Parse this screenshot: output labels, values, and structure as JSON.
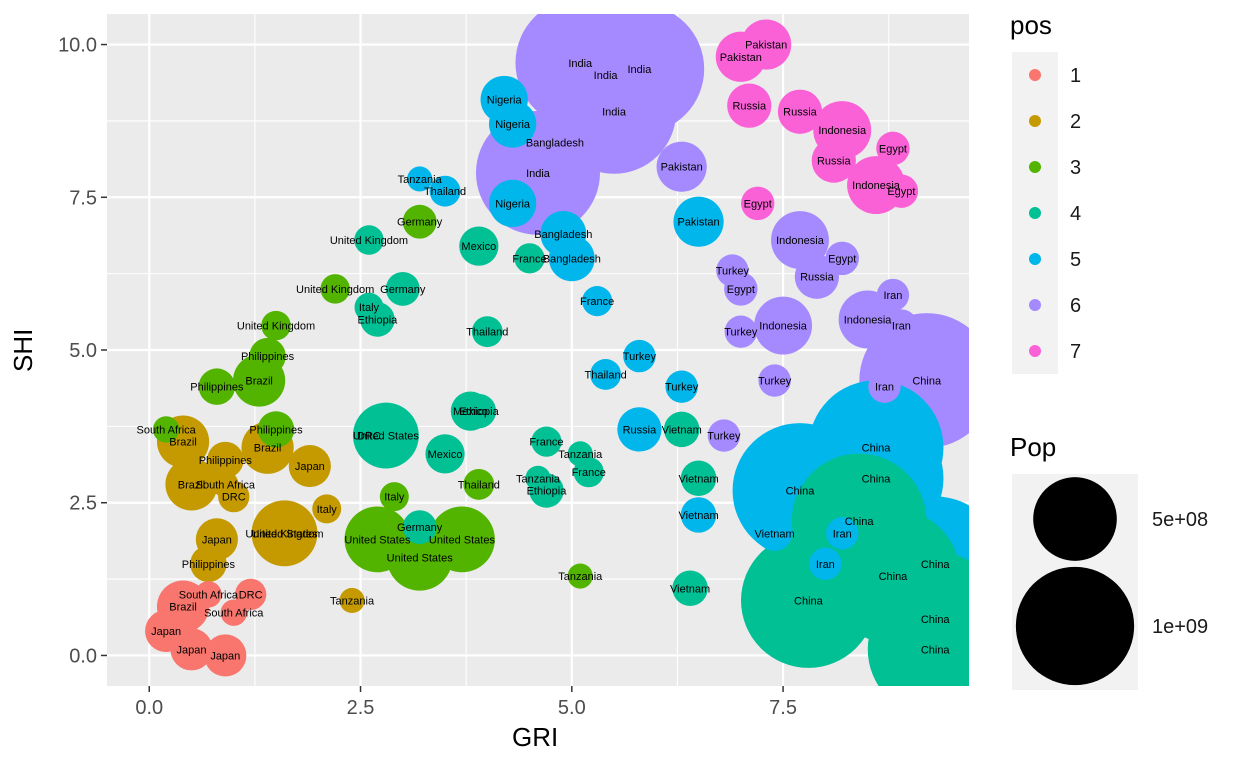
{
  "chart_data": {
    "type": "scatter",
    "xlabel": "GRI",
    "ylabel": "SHI",
    "xlim": [
      -0.5,
      9.7
    ],
    "ylim": [
      -0.5,
      10.5
    ],
    "x_ticks": [
      "0.0",
      "2.5",
      "5.0",
      "7.5"
    ],
    "x_tick_values": [
      0,
      2.5,
      5,
      7.5
    ],
    "y_ticks": [
      "0.0",
      "2.5",
      "5.0",
      "7.5",
      "10.0"
    ],
    "y_tick_values": [
      0,
      2.5,
      5,
      7.5,
      10
    ],
    "grid": true,
    "legend_color": {
      "title": "pos",
      "entries": [
        {
          "label": "1",
          "color": "#F8766D"
        },
        {
          "label": "2",
          "color": "#C49A00"
        },
        {
          "label": "3",
          "color": "#53B400"
        },
        {
          "label": "4",
          "color": "#00C094"
        },
        {
          "label": "5",
          "color": "#00B6EB"
        },
        {
          "label": "6",
          "color": "#A58AFF"
        },
        {
          "label": "7",
          "color": "#FB61D7"
        }
      ]
    },
    "legend_size": {
      "title": "Pop",
      "entries": [
        {
          "label": "5e+08",
          "value": 500000000
        },
        {
          "label": "1e+09",
          "value": 1000000000
        }
      ]
    },
    "points": [
      {
        "label": "China",
        "x": 9.2,
        "y": 4.5,
        "pos": 6,
        "pop": 1300000000
      },
      {
        "label": "China",
        "x": 9.3,
        "y": 1.5,
        "pos": 5,
        "pop": 1300000000
      },
      {
        "label": "China",
        "x": 8.6,
        "y": 2.9,
        "pos": 5,
        "pop": 1300000000
      },
      {
        "label": "China",
        "x": 8.6,
        "y": 3.4,
        "pos": 5,
        "pop": 1300000000
      },
      {
        "label": "China",
        "x": 7.7,
        "y": 2.7,
        "pos": 5,
        "pop": 1300000000
      },
      {
        "label": "China",
        "x": 8.4,
        "y": 2.2,
        "pos": 4,
        "pop": 1300000000
      },
      {
        "label": "China",
        "x": 7.8,
        "y": 0.9,
        "pos": 4,
        "pop": 1300000000
      },
      {
        "label": "China",
        "x": 8.8,
        "y": 1.3,
        "pos": 4,
        "pop": 1300000000
      },
      {
        "label": "China",
        "x": 9.3,
        "y": 0.6,
        "pos": 4,
        "pop": 1300000000
      },
      {
        "label": "China",
        "x": 9.3,
        "y": 0.1,
        "pos": 4,
        "pop": 1300000000
      },
      {
        "label": "India",
        "x": 5.1,
        "y": 9.7,
        "pos": 6,
        "pop": 1200000000
      },
      {
        "label": "India",
        "x": 5.4,
        "y": 9.5,
        "pos": 6,
        "pop": 1200000000
      },
      {
        "label": "India",
        "x": 5.8,
        "y": 9.6,
        "pos": 6,
        "pop": 1200000000
      },
      {
        "label": "India",
        "x": 5.5,
        "y": 8.9,
        "pos": 6,
        "pop": 1100000000
      },
      {
        "label": "India",
        "x": 4.6,
        "y": 7.9,
        "pos": 6,
        "pop": 1100000000
      },
      {
        "label": "Pakistan",
        "x": 7.3,
        "y": 10.0,
        "pos": 7,
        "pop": 180000000
      },
      {
        "label": "Pakistan",
        "x": 7.0,
        "y": 9.8,
        "pos": 7,
        "pop": 180000000
      },
      {
        "label": "Pakistan",
        "x": 6.3,
        "y": 8.0,
        "pos": 6,
        "pop": 180000000
      },
      {
        "label": "Pakistan",
        "x": 6.5,
        "y": 7.1,
        "pos": 5,
        "pop": 180000000
      },
      {
        "label": "Nigeria",
        "x": 4.2,
        "y": 9.1,
        "pos": 5,
        "pop": 160000000
      },
      {
        "label": "Nigeria",
        "x": 4.3,
        "y": 8.7,
        "pos": 5,
        "pop": 160000000
      },
      {
        "label": "Nigeria",
        "x": 4.3,
        "y": 7.4,
        "pos": 5,
        "pop": 160000000
      },
      {
        "label": "Bangladesh",
        "x": 4.9,
        "y": 6.9,
        "pos": 5,
        "pop": 150000000
      },
      {
        "label": "Bangladesh",
        "x": 5.0,
        "y": 6.5,
        "pos": 5,
        "pop": 150000000
      },
      {
        "label": "Bangladesh",
        "x": 4.8,
        "y": 8.4,
        "pos": 6,
        "pop": 150000000
      },
      {
        "label": "Indonesia",
        "x": 8.2,
        "y": 8.6,
        "pos": 7,
        "pop": 240000000
      },
      {
        "label": "Indonesia",
        "x": 8.6,
        "y": 7.7,
        "pos": 7,
        "pop": 240000000
      },
      {
        "label": "Indonesia",
        "x": 7.7,
        "y": 6.8,
        "pos": 6,
        "pop": 240000000
      },
      {
        "label": "Indonesia",
        "x": 8.5,
        "y": 5.5,
        "pos": 6,
        "pop": 240000000
      },
      {
        "label": "Indonesia",
        "x": 7.5,
        "y": 5.4,
        "pos": 6,
        "pop": 240000000
      },
      {
        "label": "Russia",
        "x": 7.7,
        "y": 8.9,
        "pos": 7,
        "pop": 140000000
      },
      {
        "label": "Russia",
        "x": 7.1,
        "y": 9.0,
        "pos": 7,
        "pop": 140000000
      },
      {
        "label": "Russia",
        "x": 8.1,
        "y": 8.1,
        "pos": 7,
        "pop": 140000000
      },
      {
        "label": "Russia",
        "x": 7.9,
        "y": 6.2,
        "pos": 6,
        "pop": 140000000
      },
      {
        "label": "Russia",
        "x": 5.8,
        "y": 3.7,
        "pos": 5,
        "pop": 140000000
      },
      {
        "label": "Egypt",
        "x": 8.8,
        "y": 8.3,
        "pos": 7,
        "pop": 80000000
      },
      {
        "label": "Egypt",
        "x": 8.9,
        "y": 7.6,
        "pos": 7,
        "pop": 80000000
      },
      {
        "label": "Egypt",
        "x": 7.2,
        "y": 7.4,
        "pos": 7,
        "pop": 80000000
      },
      {
        "label": "Egypt",
        "x": 7.0,
        "y": 6.0,
        "pos": 6,
        "pop": 80000000
      },
      {
        "label": "Egypt",
        "x": 8.2,
        "y": 6.5,
        "pos": 6,
        "pop": 80000000
      },
      {
        "label": "Iran",
        "x": 8.8,
        "y": 5.9,
        "pos": 6,
        "pop": 75000000
      },
      {
        "label": "Iran",
        "x": 8.9,
        "y": 5.4,
        "pos": 6,
        "pop": 75000000
      },
      {
        "label": "Iran",
        "x": 8.7,
        "y": 4.4,
        "pos": 6,
        "pop": 75000000
      },
      {
        "label": "Iran",
        "x": 8.2,
        "y": 2.0,
        "pos": 5,
        "pop": 75000000
      },
      {
        "label": "Iran",
        "x": 8.0,
        "y": 1.5,
        "pos": 5,
        "pop": 75000000
      },
      {
        "label": "Turkey",
        "x": 6.9,
        "y": 6.3,
        "pos": 6,
        "pop": 75000000
      },
      {
        "label": "Turkey",
        "x": 7.0,
        "y": 5.3,
        "pos": 6,
        "pop": 75000000
      },
      {
        "label": "Turkey",
        "x": 7.4,
        "y": 4.5,
        "pos": 6,
        "pop": 75000000
      },
      {
        "label": "Turkey",
        "x": 6.8,
        "y": 3.6,
        "pos": 6,
        "pop": 75000000
      },
      {
        "label": "Turkey",
        "x": 5.8,
        "y": 4.9,
        "pos": 5,
        "pop": 75000000
      },
      {
        "label": "Turkey",
        "x": 6.3,
        "y": 4.4,
        "pos": 5,
        "pop": 75000000
      },
      {
        "label": "Vietnam",
        "x": 7.4,
        "y": 2.0,
        "pos": 5,
        "pop": 90000000
      },
      {
        "label": "Vietnam",
        "x": 6.3,
        "y": 3.7,
        "pos": 4,
        "pop": 90000000
      },
      {
        "label": "Vietnam",
        "x": 6.5,
        "y": 2.9,
        "pos": 4,
        "pop": 90000000
      },
      {
        "label": "Vietnam",
        "x": 6.4,
        "y": 1.1,
        "pos": 4,
        "pop": 90000000
      },
      {
        "label": "Vietnam",
        "x": 6.5,
        "y": 2.3,
        "pos": 5,
        "pop": 90000000
      },
      {
        "label": "Thailand",
        "x": 3.5,
        "y": 7.6,
        "pos": 5,
        "pop": 68000000
      },
      {
        "label": "Thailand",
        "x": 5.4,
        "y": 4.6,
        "pos": 5,
        "pop": 68000000
      },
      {
        "label": "Thailand",
        "x": 4.0,
        "y": 5.3,
        "pos": 4,
        "pop": 68000000
      },
      {
        "label": "Thailand",
        "x": 3.9,
        "y": 2.8,
        "pos": 3,
        "pop": 68000000
      },
      {
        "label": "France",
        "x": 4.5,
        "y": 6.5,
        "pos": 4,
        "pop": 65000000
      },
      {
        "label": "France",
        "x": 5.3,
        "y": 5.8,
        "pos": 5,
        "pop": 65000000
      },
      {
        "label": "France",
        "x": 5.2,
        "y": 3.0,
        "pos": 4,
        "pop": 65000000
      },
      {
        "label": "France",
        "x": 4.7,
        "y": 3.5,
        "pos": 4,
        "pop": 65000000
      },
      {
        "label": "Mexico",
        "x": 3.9,
        "y": 6.7,
        "pos": 4,
        "pop": 110000000
      },
      {
        "label": "Mexico",
        "x": 3.8,
        "y": 4.0,
        "pos": 4,
        "pop": 110000000
      },
      {
        "label": "Mexico",
        "x": 3.5,
        "y": 3.3,
        "pos": 4,
        "pop": 110000000
      },
      {
        "label": "Ethiopia",
        "x": 2.7,
        "y": 5.5,
        "pos": 4,
        "pop": 85000000
      },
      {
        "label": "Ethiopia",
        "x": 3.9,
        "y": 4.0,
        "pos": 4,
        "pop": 85000000
      },
      {
        "label": "Ethiopia",
        "x": 4.7,
        "y": 2.7,
        "pos": 4,
        "pop": 85000000
      },
      {
        "label": "Germany",
        "x": 3.2,
        "y": 7.1,
        "pos": 3,
        "pop": 82000000
      },
      {
        "label": "Germany",
        "x": 3.0,
        "y": 6.0,
        "pos": 4,
        "pop": 82000000
      },
      {
        "label": "Germany",
        "x": 3.2,
        "y": 2.1,
        "pos": 4,
        "pop": 82000000
      },
      {
        "label": "United Kingdom",
        "x": 2.6,
        "y": 6.8,
        "pos": 4,
        "pop": 62000000
      },
      {
        "label": "United Kingdom",
        "x": 2.2,
        "y": 6.0,
        "pos": 3,
        "pop": 62000000
      },
      {
        "label": "United Kingdom",
        "x": 1.5,
        "y": 5.4,
        "pos": 3,
        "pop": 62000000
      },
      {
        "label": "United Kingdom",
        "x": 1.6,
        "y": 2.0,
        "pos": 2,
        "pop": 62000000
      },
      {
        "label": "United States",
        "x": 2.8,
        "y": 3.6,
        "pos": 4,
        "pop": 310000000
      },
      {
        "label": "United States",
        "x": 3.7,
        "y": 1.9,
        "pos": 3,
        "pop": 310000000
      },
      {
        "label": "United States",
        "x": 2.7,
        "y": 1.9,
        "pos": 3,
        "pop": 310000000
      },
      {
        "label": "United States",
        "x": 1.6,
        "y": 2.0,
        "pos": 2,
        "pop": 310000000
      },
      {
        "label": "United States",
        "x": 3.2,
        "y": 1.6,
        "pos": 3,
        "pop": 310000000
      },
      {
        "label": "Italy",
        "x": 2.6,
        "y": 5.7,
        "pos": 4,
        "pop": 60000000
      },
      {
        "label": "Italy",
        "x": 2.1,
        "y": 2.4,
        "pos": 2,
        "pop": 60000000
      },
      {
        "label": "Italy",
        "x": 2.9,
        "y": 2.6,
        "pos": 3,
        "pop": 60000000
      },
      {
        "label": "Philippines",
        "x": 1.4,
        "y": 4.9,
        "pos": 3,
        "pop": 95000000
      },
      {
        "label": "Philippines",
        "x": 0.8,
        "y": 4.4,
        "pos": 3,
        "pop": 95000000
      },
      {
        "label": "Philippines",
        "x": 1.5,
        "y": 3.7,
        "pos": 3,
        "pop": 95000000
      },
      {
        "label": "Philippines",
        "x": 0.9,
        "y": 3.2,
        "pos": 2,
        "pop": 95000000
      },
      {
        "label": "Philippines",
        "x": 0.7,
        "y": 1.5,
        "pos": 2,
        "pop": 95000000
      },
      {
        "label": "Brazil",
        "x": 1.3,
        "y": 4.5,
        "pos": 3,
        "pop": 195000000
      },
      {
        "label": "Brazil",
        "x": 0.4,
        "y": 3.5,
        "pos": 2,
        "pop": 195000000
      },
      {
        "label": "Brazil",
        "x": 1.4,
        "y": 3.4,
        "pos": 2,
        "pop": 195000000
      },
      {
        "label": "Brazil",
        "x": 0.5,
        "y": 2.8,
        "pos": 2,
        "pop": 195000000
      },
      {
        "label": "Brazil",
        "x": 0.4,
        "y": 0.8,
        "pos": 1,
        "pop": 195000000
      },
      {
        "label": "South Africa",
        "x": 0.2,
        "y": 3.7,
        "pos": 3,
        "pop": 50000000
      },
      {
        "label": "South Africa",
        "x": 0.9,
        "y": 2.8,
        "pos": 2,
        "pop": 50000000
      },
      {
        "label": "South Africa",
        "x": 0.7,
        "y": 1.0,
        "pos": 1,
        "pop": 50000000
      },
      {
        "label": "South Africa",
        "x": 1.0,
        "y": 0.7,
        "pos": 1,
        "pop": 50000000
      },
      {
        "label": "Japan",
        "x": 0.2,
        "y": 0.4,
        "pos": 1,
        "pop": 127000000
      },
      {
        "label": "Japan",
        "x": 0.5,
        "y": 0.1,
        "pos": 1,
        "pop": 127000000
      },
      {
        "label": "Japan",
        "x": 0.9,
        "y": 0.0,
        "pos": 1,
        "pop": 127000000
      },
      {
        "label": "Japan",
        "x": 0.8,
        "y": 1.9,
        "pos": 2,
        "pop": 127000000
      },
      {
        "label": "Japan",
        "x": 1.9,
        "y": 3.1,
        "pos": 2,
        "pop": 127000000
      },
      {
        "label": "DRC",
        "x": 1.2,
        "y": 1.0,
        "pos": 1,
        "pop": 70000000
      },
      {
        "label": "DRC",
        "x": 1.0,
        "y": 2.6,
        "pos": 2,
        "pop": 70000000
      },
      {
        "label": "DRC",
        "x": 2.6,
        "y": 3.6,
        "pos": 4,
        "pop": 70000000
      },
      {
        "label": "Tanzania",
        "x": 3.2,
        "y": 7.8,
        "pos": 5,
        "pop": 45000000
      },
      {
        "label": "Tanzania",
        "x": 2.4,
        "y": 0.9,
        "pos": 2,
        "pop": 45000000
      },
      {
        "label": "Tanzania",
        "x": 5.1,
        "y": 1.3,
        "pos": 3,
        "pop": 45000000
      },
      {
        "label": "Tanzania",
        "x": 5.1,
        "y": 3.3,
        "pos": 4,
        "pop": 45000000
      },
      {
        "label": "Tanzania",
        "x": 4.6,
        "y": 2.9,
        "pos": 4,
        "pop": 45000000
      }
    ]
  }
}
